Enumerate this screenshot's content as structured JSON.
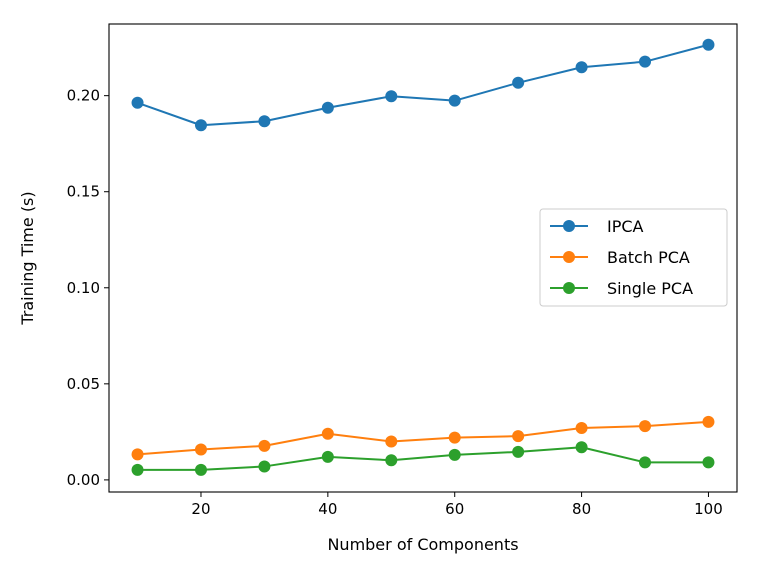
{
  "chart_data": {
    "type": "line",
    "title": "",
    "xlabel": "Number of Components",
    "ylabel": "Training Time (s)",
    "x": [
      10,
      20,
      30,
      40,
      50,
      60,
      70,
      80,
      90,
      100
    ],
    "xlim": [
      5.5,
      104.5
    ],
    "ylim": [
      -0.0063,
      0.2373
    ],
    "xticks": [
      20,
      40,
      60,
      80,
      100
    ],
    "yticks": [
      0.0,
      0.05,
      0.1,
      0.15,
      0.2
    ],
    "xtick_labels": [
      "20",
      "40",
      "60",
      "80",
      "100"
    ],
    "ytick_labels": [
      "0.00",
      "0.05",
      "0.10",
      "0.15",
      "0.20"
    ],
    "grid": false,
    "legend": "center-right",
    "series": [
      {
        "name": "IPCA",
        "color": "#1f77b4",
        "marker": "circle",
        "values": [
          0.1963,
          0.1846,
          0.1867,
          0.1937,
          0.1997,
          0.1974,
          0.2067,
          0.2148,
          0.2177,
          0.2265
        ]
      },
      {
        "name": "Batch PCA",
        "color": "#ff7f0e",
        "marker": "circle",
        "values": [
          0.0133,
          0.0158,
          0.0177,
          0.024,
          0.02,
          0.022,
          0.0228,
          0.027,
          0.028,
          0.0302
        ]
      },
      {
        "name": "Single PCA",
        "color": "#2ca02c",
        "marker": "circle",
        "values": [
          0.0052,
          0.0052,
          0.007,
          0.012,
          0.0102,
          0.013,
          0.0146,
          0.017,
          0.0091,
          0.0091
        ]
      }
    ]
  }
}
